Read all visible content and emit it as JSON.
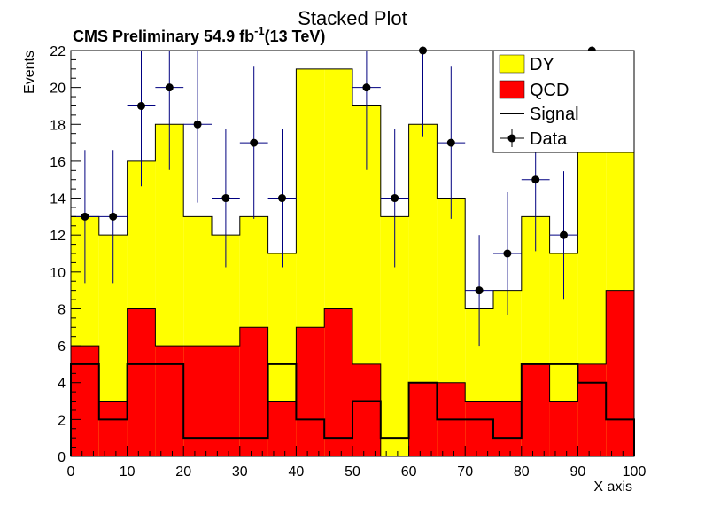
{
  "chart_data": {
    "type": "bar",
    "title": "Stacked Plot",
    "subtitle": "CMS Preliminary 54.9 fb",
    "subtitle_sup": "-1",
    "subtitle_suffix": "(13 TeV)",
    "xlabel": "X axis",
    "ylabel": "Events",
    "xlim": [
      0,
      100
    ],
    "ylim": [
      0,
      22
    ],
    "bin_width": 5,
    "bin_edges": [
      0,
      5,
      10,
      15,
      20,
      25,
      30,
      35,
      40,
      45,
      50,
      55,
      60,
      65,
      70,
      75,
      80,
      85,
      90,
      95,
      100
    ],
    "x_ticks": [
      "0",
      "10",
      "20",
      "30",
      "40",
      "50",
      "60",
      "70",
      "80",
      "90",
      "100"
    ],
    "y_ticks": [
      "0",
      "2",
      "4",
      "6",
      "8",
      "10",
      "12",
      "14",
      "16",
      "18",
      "20",
      "22"
    ],
    "legend_position": "top-right",
    "series": [
      {
        "name": "QCD",
        "kind": "stacked-fill",
        "color": "#ff0000",
        "values": [
          6,
          3,
          8,
          6,
          6,
          6,
          7,
          3,
          7,
          8,
          5,
          0,
          4,
          4,
          3,
          3,
          5,
          3,
          5,
          9
        ]
      },
      {
        "name": "DY",
        "kind": "stacked-fill",
        "color": "#ffff00",
        "values": [
          7,
          9,
          8,
          12,
          7,
          6,
          6,
          8,
          14,
          13,
          14,
          13,
          14,
          10,
          5,
          6,
          8,
          8,
          12,
          7.5
        ]
      },
      {
        "name": "Signal",
        "kind": "step-line",
        "color": "#000000",
        "values": [
          5,
          2,
          5,
          5,
          1,
          1,
          1,
          5,
          2,
          1,
          3,
          1,
          4,
          2,
          2,
          1,
          5,
          5,
          4,
          2
        ]
      },
      {
        "name": "Data",
        "kind": "points-with-errors",
        "color": "#000000",
        "error_color": "#000080",
        "values": [
          13,
          13,
          19,
          20,
          18,
          14,
          17,
          14,
          null,
          null,
          20,
          14,
          22,
          17,
          9,
          11,
          15,
          12,
          22,
          null
        ]
      }
    ]
  }
}
